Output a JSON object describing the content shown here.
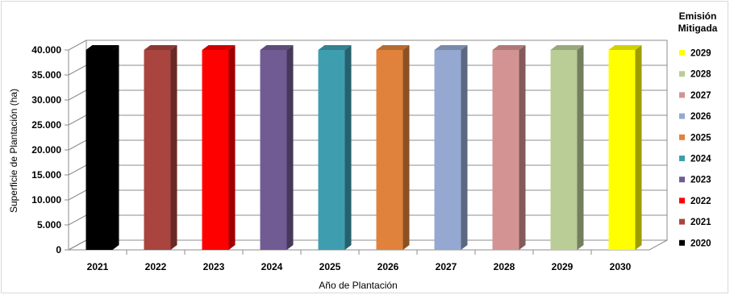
{
  "chart_data": {
    "type": "bar",
    "categories": [
      "2021",
      "2022",
      "2023",
      "2024",
      "2025",
      "2026",
      "2027",
      "2028",
      "2029",
      "2030"
    ],
    "values": [
      40000,
      40000,
      40000,
      40000,
      40000,
      40000,
      40000,
      40000,
      40000,
      40000
    ],
    "colors": [
      "#000000",
      "#a9443f",
      "#ff0000",
      "#715b93",
      "#3f9db0",
      "#e0823c",
      "#94a8d1",
      "#d49393",
      "#bacd96",
      "#ffff00"
    ],
    "ylabel": "Superficie de Plantación (ha)",
    "xlabel": "Año de Plantación",
    "ylim": [
      0,
      40000
    ],
    "yticks": [
      "0",
      "5.000",
      "10.000",
      "15.000",
      "20.000",
      "25.000",
      "30.000",
      "35.000",
      "40.000"
    ],
    "grid": true,
    "legend": {
      "title_line1": "Emisión",
      "title_line2": "Mitigada",
      "position": "right",
      "entries": [
        {
          "label": "2029",
          "color": "#ffff00"
        },
        {
          "label": "2028",
          "color": "#bacd96"
        },
        {
          "label": "2027",
          "color": "#d49393"
        },
        {
          "label": "2026",
          "color": "#94a8d1"
        },
        {
          "label": "2025",
          "color": "#e0823c"
        },
        {
          "label": "2024",
          "color": "#3f9db0"
        },
        {
          "label": "2023",
          "color": "#715b93"
        },
        {
          "label": "2022",
          "color": "#ff0000"
        },
        {
          "label": "2021",
          "color": "#a9443f"
        },
        {
          "label": "2020",
          "color": "#000000"
        }
      ]
    }
  }
}
